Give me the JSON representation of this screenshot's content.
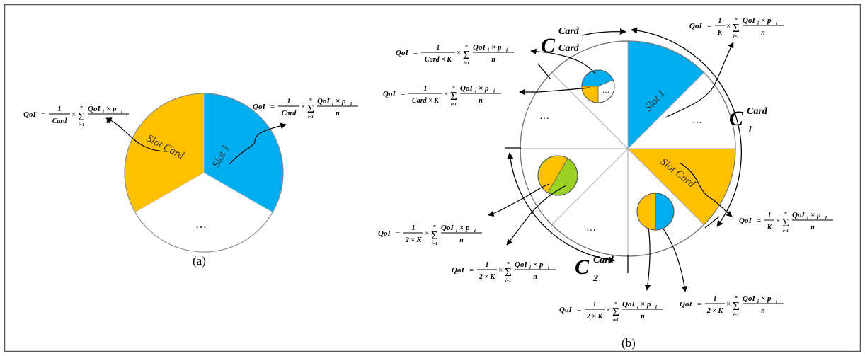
{
  "colors": {
    "blue": "#00aeef",
    "yellow": "#ffc000",
    "green": "#9bd125",
    "outline": "#777777",
    "frame": "#555555"
  },
  "text": {
    "qoi": "QoI",
    "eq": "=",
    "one": "1",
    "times": "×",
    "sigma": "Σ",
    "sum_top": "n",
    "sum_bottom": "i=1",
    "numerator": "QoI",
    "sub_i": "i",
    "times_p": "× p",
    "n": "n",
    "den_card": "Card",
    "den_k": "K",
    "den_card_k": "Card × K",
    "den_2k": "2 × K",
    "dots": "…",
    "c": "C",
    "c_sup": "Card",
    "c_sub_card": "Card",
    "c_sub_1": "1",
    "c_sub_2": "2"
  },
  "panel_a": {
    "slot_1": "Slot 1",
    "slot_card": "Slot Card",
    "caption": "(a)"
  },
  "panel_b": {
    "slot_1": "Slot 1",
    "slot_card": "Slot Card",
    "caption": "(b)"
  }
}
